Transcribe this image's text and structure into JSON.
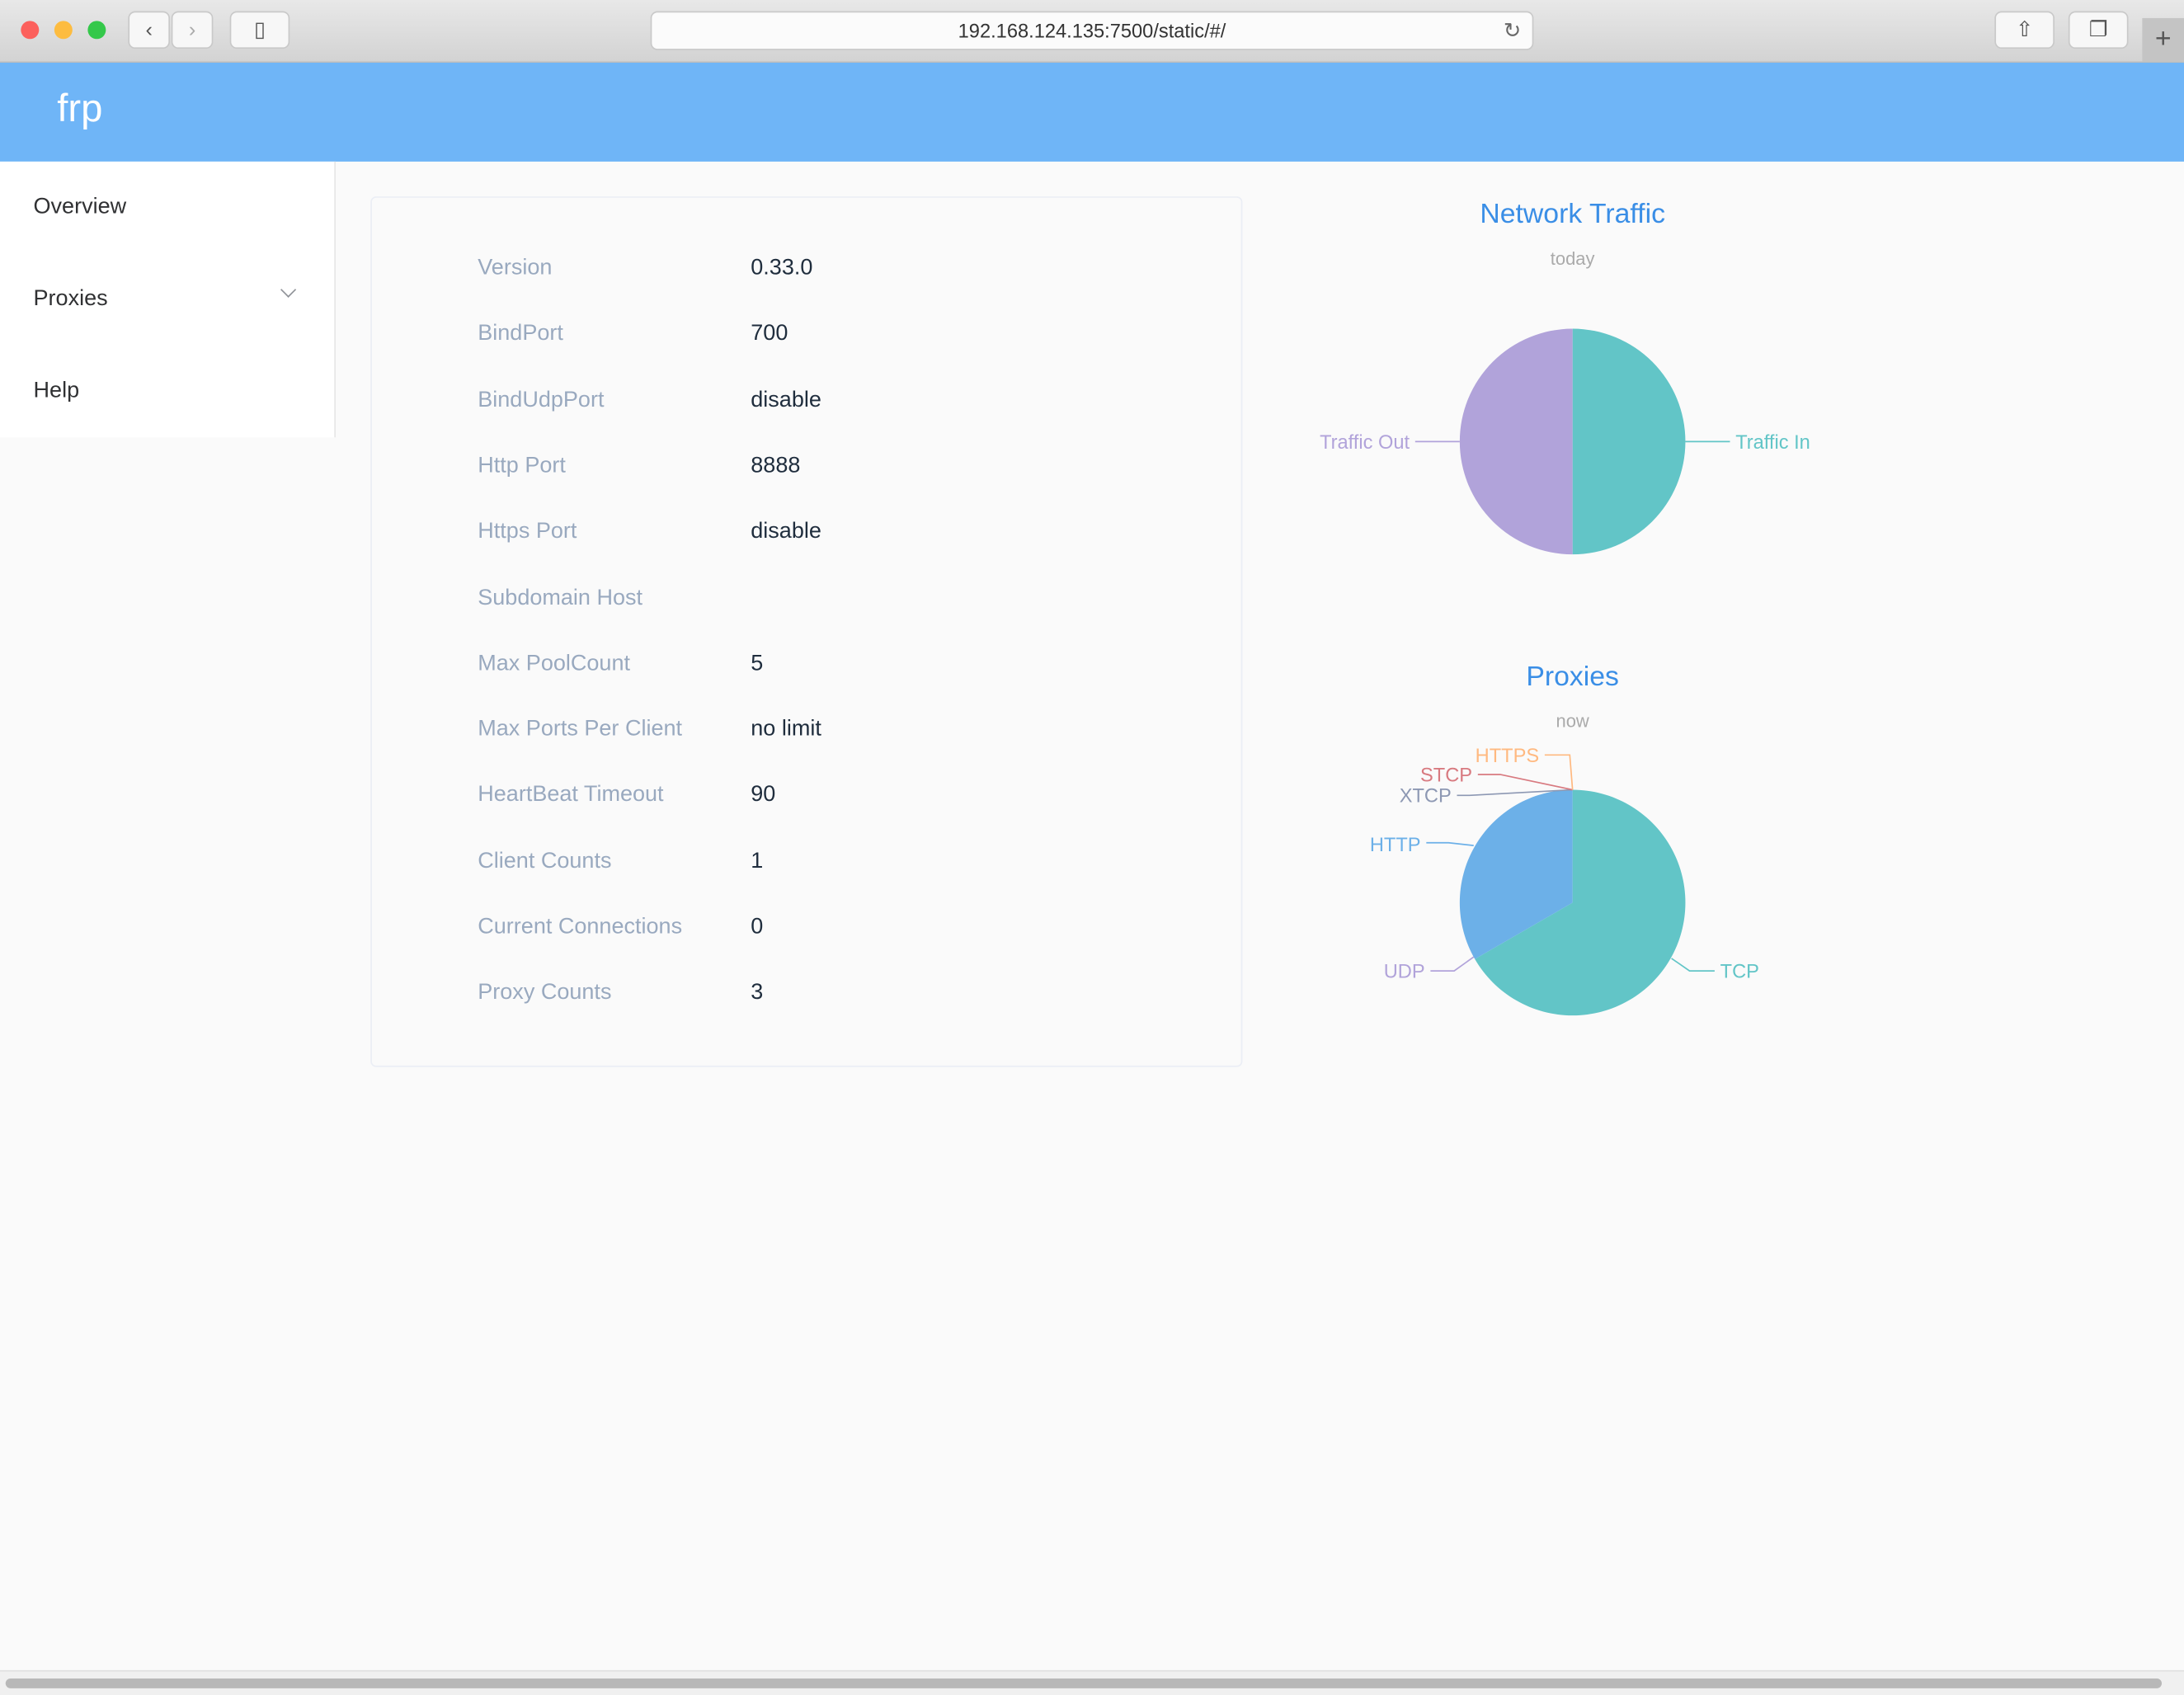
{
  "browser": {
    "url": "192.168.124.135:7500/static/#/"
  },
  "header": {
    "brand": "frp",
    "color": "#6fb5f7"
  },
  "sidebar": {
    "items": [
      {
        "label": "Overview"
      },
      {
        "label": "Proxies"
      },
      {
        "label": "Help"
      }
    ]
  },
  "overview": {
    "rows": [
      {
        "label": "Version",
        "value": "0.33.0"
      },
      {
        "label": "BindPort",
        "value": "700"
      },
      {
        "label": "BindUdpPort",
        "value": "disable"
      },
      {
        "label": "Http Port",
        "value": "8888"
      },
      {
        "label": "Https Port",
        "value": "disable"
      },
      {
        "label": "Subdomain Host",
        "value": ""
      },
      {
        "label": "Max PoolCount",
        "value": "5"
      },
      {
        "label": "Max Ports Per Client",
        "value": "no limit"
      },
      {
        "label": "HeartBeat Timeout",
        "value": "90"
      },
      {
        "label": "Client Counts",
        "value": "1"
      },
      {
        "label": "Current Connections",
        "value": "0"
      },
      {
        "label": "Proxy Counts",
        "value": "3"
      }
    ]
  },
  "chart_data": [
    {
      "type": "pie",
      "title": "Network Traffic",
      "subtitle": "today",
      "slices": [
        {
          "name": "Traffic In",
          "value": 50,
          "color": "#62c5c7"
        },
        {
          "name": "Traffic Out",
          "value": 50,
          "color": "#b1a3da"
        }
      ]
    },
    {
      "type": "pie",
      "title": "Proxies",
      "subtitle": "now",
      "slices": [
        {
          "name": "TCP",
          "value": 2,
          "color": "#62c5c7"
        },
        {
          "name": "UDP",
          "value": 0,
          "color": "#b1a3da"
        },
        {
          "name": "HTTP",
          "value": 1,
          "color": "#6cb0e8"
        },
        {
          "name": "XTCP",
          "value": 0,
          "color": "#8d98b3"
        },
        {
          "name": "STCP",
          "value": 0,
          "color": "#d87a80"
        },
        {
          "name": "HTTPS",
          "value": 0,
          "color": "#ffb980"
        }
      ]
    }
  ]
}
